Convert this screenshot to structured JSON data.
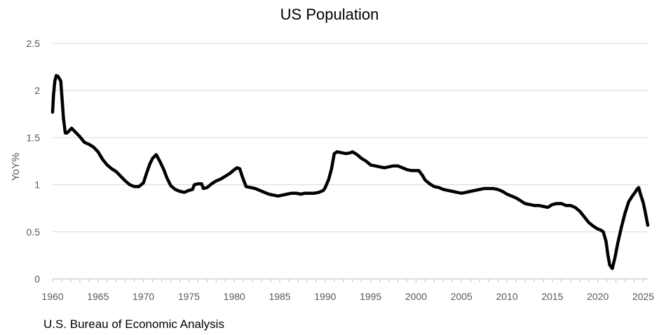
{
  "source_note": "U.S. Bureau of Economic Analysis",
  "chart_data": {
    "type": "line",
    "title": "US Population",
    "xlabel": "",
    "ylabel": "YoY%",
    "xlim": [
      1960,
      2025.5
    ],
    "ylim": [
      0,
      2.5
    ],
    "x_ticks": [
      1960,
      1965,
      1970,
      1975,
      1980,
      1985,
      1990,
      1995,
      2000,
      2005,
      2010,
      2015,
      2020,
      2025
    ],
    "y_ticks": [
      0,
      0.5,
      1,
      1.5,
      2,
      2.5
    ],
    "y_tick_labels": [
      "0",
      "0.5",
      "1",
      "1.5",
      "2",
      "2.5"
    ],
    "grid": "horizontal",
    "legend": "none",
    "line_color": "#000000",
    "series": [
      {
        "x": [
          1960.0,
          1960.1,
          1960.25,
          1960.4,
          1960.6,
          1960.9,
          1961.2,
          1961.4,
          1961.6,
          1961.9,
          1962.1,
          1962.5,
          1963.0,
          1963.5,
          1964.0,
          1964.5,
          1965.0,
          1965.5,
          1966.0,
          1966.5,
          1967.0,
          1967.5,
          1968.0,
          1968.5,
          1969.0,
          1969.5,
          1970.0,
          1970.3,
          1970.7,
          1971.0,
          1971.4,
          1971.8,
          1972.2,
          1972.6,
          1973.0,
          1973.5,
          1974.0,
          1974.5,
          1975.0,
          1975.4,
          1975.6,
          1976.0,
          1976.4,
          1976.6,
          1977.0,
          1977.5,
          1978.0,
          1978.5,
          1979.0,
          1979.5,
          1980.0,
          1980.3,
          1980.6,
          1980.9,
          1981.3,
          1981.8,
          1982.3,
          1982.8,
          1983.3,
          1983.8,
          1984.3,
          1984.8,
          1985.3,
          1985.8,
          1986.3,
          1986.8,
          1987.3,
          1987.8,
          1988.3,
          1988.8,
          1989.3,
          1989.8,
          1990.0,
          1990.4,
          1990.7,
          1991.0,
          1991.3,
          1991.8,
          1992.3,
          1992.8,
          1993.0,
          1993.5,
          1994.0,
          1994.5,
          1995.0,
          1995.5,
          1996.0,
          1996.5,
          1997.0,
          1997.5,
          1998.0,
          1998.5,
          1999.0,
          1999.5,
          2000.0,
          2000.3,
          2000.7,
          2001.0,
          2001.5,
          2002.0,
          2002.5,
          2003.0,
          2003.5,
          2004.0,
          2004.5,
          2005.0,
          2005.5,
          2006.0,
          2006.5,
          2007.0,
          2007.5,
          2008.0,
          2008.5,
          2009.0,
          2009.5,
          2010.0,
          2010.5,
          2011.0,
          2011.5,
          2012.0,
          2012.5,
          2013.0,
          2013.5,
          2014.0,
          2014.5,
          2015.0,
          2015.5,
          2016.0,
          2016.5,
          2017.0,
          2017.5,
          2018.0,
          2018.5,
          2019.0,
          2019.5,
          2020.0,
          2020.3,
          2020.6,
          2020.9,
          2021.1,
          2021.3,
          2021.6,
          2021.9,
          2022.2,
          2022.6,
          2023.0,
          2023.4,
          2023.8,
          2024.1,
          2024.3,
          2024.5,
          2024.7,
          2025.0,
          2025.2,
          2025.5
        ],
        "values": [
          1.77,
          1.95,
          2.1,
          2.16,
          2.15,
          2.1,
          1.7,
          1.55,
          1.55,
          1.58,
          1.6,
          1.56,
          1.51,
          1.45,
          1.43,
          1.4,
          1.35,
          1.27,
          1.21,
          1.17,
          1.14,
          1.09,
          1.04,
          1.0,
          0.98,
          0.98,
          1.02,
          1.11,
          1.22,
          1.28,
          1.32,
          1.25,
          1.17,
          1.07,
          0.99,
          0.95,
          0.93,
          0.92,
          0.94,
          0.95,
          1.0,
          1.01,
          1.01,
          0.96,
          0.97,
          1.01,
          1.04,
          1.06,
          1.09,
          1.12,
          1.16,
          1.18,
          1.17,
          1.08,
          0.98,
          0.97,
          0.96,
          0.94,
          0.92,
          0.9,
          0.89,
          0.88,
          0.89,
          0.9,
          0.91,
          0.91,
          0.9,
          0.91,
          0.91,
          0.91,
          0.92,
          0.94,
          0.97,
          1.06,
          1.17,
          1.33,
          1.35,
          1.34,
          1.33,
          1.34,
          1.35,
          1.32,
          1.28,
          1.25,
          1.21,
          1.2,
          1.19,
          1.18,
          1.19,
          1.2,
          1.2,
          1.18,
          1.16,
          1.15,
          1.15,
          1.15,
          1.1,
          1.05,
          1.01,
          0.98,
          0.97,
          0.95,
          0.94,
          0.93,
          0.92,
          0.91,
          0.92,
          0.93,
          0.94,
          0.95,
          0.96,
          0.96,
          0.96,
          0.95,
          0.93,
          0.9,
          0.88,
          0.86,
          0.83,
          0.8,
          0.79,
          0.78,
          0.78,
          0.77,
          0.76,
          0.79,
          0.8,
          0.8,
          0.78,
          0.78,
          0.76,
          0.72,
          0.66,
          0.6,
          0.56,
          0.53,
          0.52,
          0.5,
          0.4,
          0.26,
          0.15,
          0.11,
          0.23,
          0.38,
          0.55,
          0.7,
          0.82,
          0.88,
          0.92,
          0.95,
          0.97,
          0.9,
          0.81,
          0.72,
          0.57
        ]
      }
    ]
  }
}
